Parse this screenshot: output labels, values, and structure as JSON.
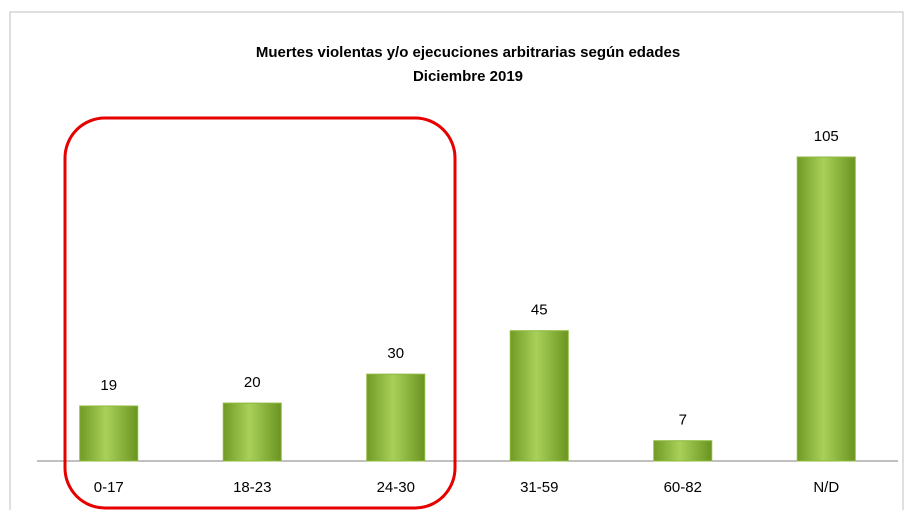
{
  "chart_data": {
    "type": "bar",
    "title": "Muertes violentas y/o ejecuciones arbitrarias según edades",
    "subtitle": "Diciembre 2019",
    "categories": [
      "0-17",
      "18-23",
      "24-30",
      "31-59",
      "60-82",
      "N/D"
    ],
    "values": [
      19,
      20,
      30,
      45,
      7,
      105
    ],
    "color": "#8db83a",
    "ylim": [
      0,
      120
    ]
  }
}
